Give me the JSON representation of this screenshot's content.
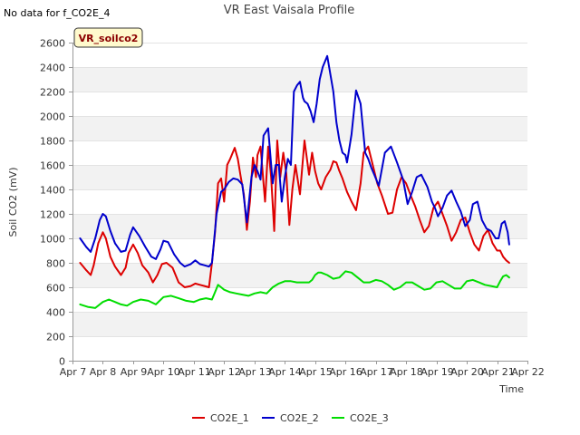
{
  "header": {
    "nodata_note": "No data for f_CO2E_4"
  },
  "badge": {
    "label": "VR_soilco2",
    "fill": "#fffacd",
    "text_color": "#8b0000"
  },
  "chart_data": {
    "type": "line",
    "title": "VR East Vaisala Profile",
    "xlabel": "Time",
    "ylabel": "Soil CO2 (mV)",
    "ylim": [
      0,
      2600
    ],
    "xlim": [
      7,
      22
    ],
    "grid": true,
    "legend_position": "bottom",
    "yticks": [
      0,
      200,
      400,
      600,
      800,
      1000,
      1200,
      1400,
      1600,
      1800,
      2000,
      2200,
      2400,
      2600
    ],
    "xticks": [
      {
        "value": 7,
        "label": "Apr 7"
      },
      {
        "value": 8,
        "label": "Apr 8"
      },
      {
        "value": 9,
        "label": "Apr 9"
      },
      {
        "value": 10,
        "label": "Apr 10"
      },
      {
        "value": 11,
        "label": "Apr 11"
      },
      {
        "value": 12,
        "label": "Apr 12"
      },
      {
        "value": 13,
        "label": "Apr 13"
      },
      {
        "value": 14,
        "label": "Apr 14"
      },
      {
        "value": 15,
        "label": "Apr 15"
      },
      {
        "value": 16,
        "label": "Apr 16"
      },
      {
        "value": 17,
        "label": "Apr 17"
      },
      {
        "value": 18,
        "label": "Apr 18"
      },
      {
        "value": 19,
        "label": "Apr 19"
      },
      {
        "value": 20,
        "label": "Apr 20"
      },
      {
        "value": 21,
        "label": "Apr 21"
      },
      {
        "value": 22,
        "label": "Apr 22"
      }
    ],
    "series": [
      {
        "name": "CO2E_1",
        "color": "#dd0000",
        "x": [
          7.25,
          7.45,
          7.6,
          7.7,
          7.85,
          8.0,
          8.1,
          8.25,
          8.4,
          8.6,
          8.75,
          8.85,
          9.0,
          9.15,
          9.3,
          9.5,
          9.65,
          9.8,
          9.95,
          10.1,
          10.3,
          10.5,
          10.7,
          10.9,
          11.05,
          11.2,
          11.35,
          11.5,
          11.6,
          11.7,
          11.8,
          11.9,
          12.0,
          12.1,
          12.2,
          12.35,
          12.45,
          12.55,
          12.65,
          12.75,
          12.85,
          12.95,
          13.05,
          13.1,
          13.2,
          13.3,
          13.35,
          13.45,
          13.55,
          13.65,
          13.75,
          13.85,
          13.95,
          14.05,
          14.15,
          14.25,
          14.35,
          14.5,
          14.65,
          14.8,
          14.9,
          15.0,
          15.1,
          15.2,
          15.35,
          15.5,
          15.6,
          15.7,
          15.8,
          15.9,
          16.05,
          16.2,
          16.35,
          16.5,
          16.6,
          16.75,
          16.9,
          17.05,
          17.2,
          17.4,
          17.55,
          17.7,
          17.85,
          18.0,
          18.15,
          18.3,
          18.45,
          18.6,
          18.75,
          18.9,
          19.05,
          19.2,
          19.35,
          19.5,
          19.65,
          19.8,
          19.95,
          20.1,
          20.25,
          20.4,
          20.55,
          20.7,
          20.85,
          21.0,
          21.1,
          21.2,
          21.3,
          21.4
        ],
        "values": [
          800,
          740,
          700,
          780,
          960,
          1050,
          1000,
          850,
          770,
          700,
          760,
          880,
          950,
          880,
          780,
          720,
          640,
          700,
          790,
          800,
          760,
          640,
          600,
          610,
          630,
          620,
          610,
          600,
          800,
          1050,
          1450,
          1490,
          1300,
          1600,
          1650,
          1740,
          1650,
          1500,
          1360,
          1070,
          1300,
          1660,
          1500,
          1680,
          1750,
          1450,
          1300,
          1750,
          1500,
          1060,
          1800,
          1500,
          1700,
          1530,
          1110,
          1400,
          1600,
          1360,
          1800,
          1520,
          1700,
          1550,
          1450,
          1400,
          1500,
          1560,
          1630,
          1620,
          1550,
          1490,
          1380,
          1300,
          1230,
          1450,
          1700,
          1750,
          1600,
          1450,
          1350,
          1200,
          1210,
          1400,
          1500,
          1450,
          1350,
          1260,
          1150,
          1050,
          1100,
          1250,
          1300,
          1200,
          1100,
          980,
          1050,
          1150,
          1170,
          1050,
          950,
          900,
          1020,
          1070,
          960,
          900,
          900,
          850,
          820,
          800
        ]
      },
      {
        "name": "CO2E_2",
        "color": "#0000cc",
        "x": [
          7.25,
          7.45,
          7.6,
          7.75,
          7.9,
          8.0,
          8.1,
          8.25,
          8.4,
          8.6,
          8.75,
          8.9,
          9.0,
          9.2,
          9.4,
          9.6,
          9.75,
          9.9,
          10.0,
          10.15,
          10.35,
          10.55,
          10.7,
          10.9,
          11.05,
          11.2,
          11.35,
          11.5,
          11.6,
          11.75,
          11.9,
          12.0,
          12.15,
          12.3,
          12.45,
          12.6,
          12.75,
          12.9,
          13.0,
          13.1,
          13.2,
          13.3,
          13.45,
          13.6,
          13.7,
          13.8,
          13.9,
          14.0,
          14.1,
          14.2,
          14.3,
          14.4,
          14.5,
          14.6,
          14.65,
          14.75,
          14.85,
          14.95,
          15.05,
          15.15,
          15.25,
          15.4,
          15.6,
          15.7,
          15.8,
          15.9,
          16.0,
          16.05,
          16.2,
          16.35,
          16.5,
          16.65,
          16.75,
          16.85,
          16.95,
          17.1,
          17.3,
          17.5,
          17.7,
          17.9,
          18.05,
          18.2,
          18.35,
          18.5,
          18.7,
          18.85,
          18.95,
          19.05,
          19.2,
          19.35,
          19.5,
          19.65,
          19.8,
          19.95,
          20.1,
          20.2,
          20.35,
          20.5,
          20.65,
          20.8,
          20.95,
          21.05,
          21.15,
          21.25,
          21.35,
          21.4
        ],
        "values": [
          1000,
          930,
          890,
          1000,
          1150,
          1200,
          1180,
          1060,
          960,
          890,
          900,
          1030,
          1090,
          1020,
          930,
          850,
          830,
          910,
          980,
          970,
          870,
          800,
          770,
          790,
          820,
          790,
          780,
          770,
          800,
          1200,
          1380,
          1400,
          1460,
          1490,
          1480,
          1440,
          1130,
          1500,
          1600,
          1550,
          1480,
          1840,
          1900,
          1450,
          1600,
          1600,
          1300,
          1500,
          1650,
          1600,
          2200,
          2250,
          2280,
          2150,
          2120,
          2100,
          2040,
          1950,
          2100,
          2300,
          2400,
          2490,
          2200,
          1950,
          1800,
          1700,
          1680,
          1620,
          1850,
          2210,
          2100,
          1700,
          1650,
          1580,
          1520,
          1430,
          1700,
          1750,
          1620,
          1480,
          1280,
          1380,
          1500,
          1520,
          1420,
          1300,
          1250,
          1180,
          1250,
          1350,
          1390,
          1300,
          1220,
          1100,
          1150,
          1280,
          1300,
          1150,
          1080,
          1060,
          1000,
          1000,
          1120,
          1140,
          1050,
          950
        ]
      },
      {
        "name": "CO2E_3",
        "color": "#00dd00",
        "x": [
          7.25,
          7.5,
          7.75,
          8.0,
          8.2,
          8.4,
          8.6,
          8.8,
          9.0,
          9.25,
          9.5,
          9.75,
          10.0,
          10.25,
          10.5,
          10.75,
          11.0,
          11.2,
          11.4,
          11.6,
          11.7,
          11.8,
          11.9,
          12.0,
          12.2,
          12.4,
          12.6,
          12.8,
          13.0,
          13.2,
          13.4,
          13.6,
          13.8,
          14.0,
          14.2,
          14.4,
          14.6,
          14.8,
          14.9,
          15.0,
          15.1,
          15.2,
          15.4,
          15.6,
          15.8,
          16.0,
          16.2,
          16.4,
          16.6,
          16.8,
          17.0,
          17.2,
          17.4,
          17.6,
          17.8,
          18.0,
          18.2,
          18.4,
          18.6,
          18.8,
          19.0,
          19.2,
          19.4,
          19.6,
          19.8,
          20.0,
          20.2,
          20.4,
          20.6,
          20.8,
          21.0,
          21.1,
          21.2,
          21.3,
          21.4
        ],
        "values": [
          460,
          440,
          430,
          480,
          500,
          480,
          460,
          450,
          480,
          500,
          490,
          460,
          520,
          530,
          510,
          490,
          480,
          500,
          510,
          500,
          560,
          620,
          600,
          580,
          560,
          550,
          540,
          530,
          550,
          560,
          550,
          600,
          630,
          650,
          650,
          640,
          640,
          640,
          660,
          700,
          720,
          720,
          700,
          670,
          680,
          730,
          720,
          680,
          640,
          640,
          660,
          650,
          620,
          580,
          600,
          640,
          640,
          610,
          580,
          590,
          640,
          650,
          620,
          590,
          590,
          650,
          660,
          640,
          620,
          610,
          600,
          650,
          690,
          700,
          680
        ]
      }
    ]
  }
}
